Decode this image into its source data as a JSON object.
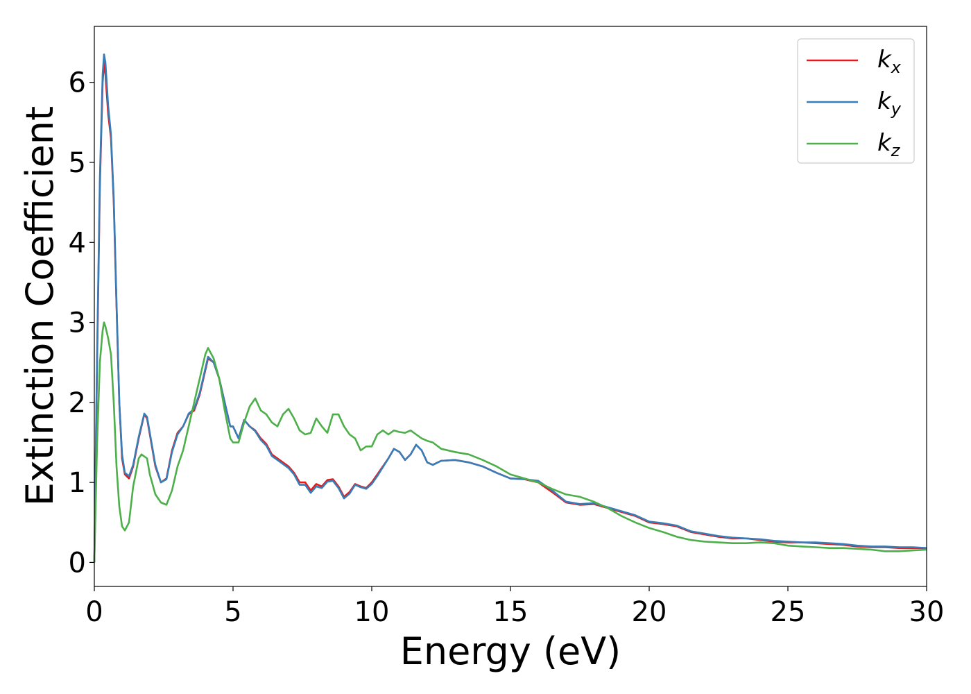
{
  "chart_data": {
    "type": "line",
    "title": "",
    "xlabel": "Energy (eV)",
    "ylabel": "Extinction Coefficient",
    "xlim": [
      0,
      30
    ],
    "ylim": [
      -0.3,
      6.7
    ],
    "xticks": [
      "0",
      "5",
      "10",
      "15",
      "20",
      "25",
      "30"
    ],
    "yticks": [
      "0",
      "1",
      "2",
      "3",
      "4",
      "5",
      "6"
    ],
    "grid": false,
    "legend_position": "top-right",
    "series": [
      {
        "name": "k_x",
        "symbol": "k",
        "subscript": "x",
        "color": "#e41a1c",
        "x": [
          0,
          0.1,
          0.2,
          0.3,
          0.35,
          0.4,
          0.5,
          0.6,
          0.7,
          0.8,
          0.9,
          1.0,
          1.1,
          1.25,
          1.4,
          1.6,
          1.8,
          1.9,
          2.0,
          2.2,
          2.4,
          2.6,
          2.8,
          3.0,
          3.2,
          3.4,
          3.6,
          3.8,
          4.0,
          4.1,
          4.3,
          4.5,
          4.7,
          4.9,
          5.0,
          5.2,
          5.4,
          5.6,
          5.8,
          6.0,
          6.2,
          6.4,
          6.6,
          6.8,
          7.0,
          7.2,
          7.4,
          7.6,
          7.8,
          8.0,
          8.2,
          8.4,
          8.6,
          8.8,
          9.0,
          9.2,
          9.4,
          9.6,
          9.8,
          10.0,
          10.2,
          10.4,
          10.6,
          10.8,
          11.0,
          11.2,
          11.4,
          11.6,
          11.8,
          12.0,
          12.2,
          12.5,
          13.0,
          13.5,
          14.0,
          14.5,
          15.0,
          15.5,
          16.0,
          16.5,
          17.0,
          17.5,
          18.0,
          18.5,
          19.0,
          19.5,
          20.0,
          20.5,
          21.0,
          21.5,
          22.0,
          22.5,
          23.0,
          23.5,
          24.0,
          24.5,
          25.0,
          25.5,
          26.0,
          26.5,
          27.0,
          27.5,
          28.0,
          28.5,
          29.0,
          29.5,
          30.0
        ],
        "y": [
          0,
          2.5,
          4.7,
          6.0,
          6.25,
          6.1,
          5.6,
          5.3,
          4.5,
          3.2,
          2.0,
          1.3,
          1.1,
          1.05,
          1.2,
          1.55,
          1.85,
          1.8,
          1.6,
          1.2,
          1.0,
          1.05,
          1.4,
          1.62,
          1.7,
          1.85,
          1.9,
          2.1,
          2.4,
          2.55,
          2.5,
          2.3,
          2.0,
          1.7,
          1.7,
          1.55,
          1.78,
          1.7,
          1.65,
          1.55,
          1.48,
          1.35,
          1.3,
          1.25,
          1.2,
          1.12,
          1.0,
          1.0,
          0.9,
          0.98,
          0.95,
          1.03,
          1.04,
          0.95,
          0.82,
          0.88,
          0.98,
          0.95,
          0.93,
          1.0,
          1.1,
          1.2,
          1.3,
          1.42,
          1.38,
          1.28,
          1.35,
          1.47,
          1.4,
          1.25,
          1.22,
          1.27,
          1.28,
          1.25,
          1.2,
          1.12,
          1.05,
          1.04,
          1.0,
          0.88,
          0.75,
          0.72,
          0.73,
          0.68,
          0.63,
          0.58,
          0.5,
          0.48,
          0.45,
          0.38,
          0.35,
          0.32,
          0.3,
          0.3,
          0.28,
          0.26,
          0.25,
          0.25,
          0.24,
          0.23,
          0.22,
          0.2,
          0.19,
          0.19,
          0.18,
          0.18,
          0.18
        ]
      },
      {
        "name": "k_y",
        "symbol": "k",
        "subscript": "y",
        "color": "#377eb8",
        "x": [
          0,
          0.1,
          0.2,
          0.3,
          0.35,
          0.4,
          0.5,
          0.6,
          0.7,
          0.8,
          0.9,
          1.0,
          1.1,
          1.25,
          1.4,
          1.6,
          1.8,
          1.9,
          2.0,
          2.2,
          2.4,
          2.6,
          2.8,
          3.0,
          3.2,
          3.4,
          3.6,
          3.8,
          4.0,
          4.1,
          4.3,
          4.5,
          4.7,
          4.9,
          5.0,
          5.2,
          5.4,
          5.6,
          5.8,
          6.0,
          6.2,
          6.4,
          6.6,
          6.8,
          7.0,
          7.2,
          7.4,
          7.6,
          7.8,
          8.0,
          8.2,
          8.4,
          8.6,
          8.8,
          9.0,
          9.2,
          9.4,
          9.6,
          9.8,
          10.0,
          10.2,
          10.4,
          10.6,
          10.8,
          11.0,
          11.2,
          11.4,
          11.6,
          11.8,
          12.0,
          12.2,
          12.5,
          13.0,
          13.5,
          14.0,
          14.5,
          15.0,
          15.5,
          16.0,
          16.5,
          17.0,
          17.5,
          18.0,
          18.5,
          19.0,
          19.5,
          20.0,
          20.5,
          21.0,
          21.5,
          22.0,
          22.5,
          23.0,
          23.5,
          24.0,
          24.5,
          25.0,
          25.5,
          26.0,
          26.5,
          27.0,
          27.5,
          28.0,
          28.5,
          29.0,
          29.5,
          30.0
        ],
        "y": [
          0,
          2.6,
          4.8,
          6.1,
          6.35,
          6.25,
          5.7,
          5.35,
          4.55,
          3.25,
          2.0,
          1.35,
          1.12,
          1.08,
          1.22,
          1.57,
          1.86,
          1.82,
          1.62,
          1.22,
          1.0,
          1.04,
          1.38,
          1.6,
          1.7,
          1.86,
          1.92,
          2.12,
          2.42,
          2.57,
          2.5,
          2.3,
          2.0,
          1.7,
          1.7,
          1.55,
          1.78,
          1.7,
          1.64,
          1.53,
          1.46,
          1.33,
          1.28,
          1.23,
          1.18,
          1.1,
          0.97,
          0.97,
          0.87,
          0.95,
          0.93,
          1.01,
          1.02,
          0.93,
          0.8,
          0.86,
          0.97,
          0.94,
          0.92,
          0.98,
          1.08,
          1.19,
          1.3,
          1.42,
          1.38,
          1.28,
          1.35,
          1.47,
          1.4,
          1.25,
          1.22,
          1.27,
          1.28,
          1.25,
          1.2,
          1.12,
          1.05,
          1.04,
          1.02,
          0.9,
          0.76,
          0.73,
          0.74,
          0.69,
          0.64,
          0.59,
          0.51,
          0.49,
          0.46,
          0.39,
          0.36,
          0.33,
          0.31,
          0.3,
          0.29,
          0.27,
          0.26,
          0.25,
          0.25,
          0.24,
          0.23,
          0.21,
          0.2,
          0.2,
          0.19,
          0.19,
          0.18
        ]
      },
      {
        "name": "k_z",
        "symbol": "k",
        "subscript": "z",
        "color": "#4daf4a",
        "x": [
          0,
          0.1,
          0.2,
          0.3,
          0.35,
          0.4,
          0.5,
          0.6,
          0.7,
          0.8,
          0.9,
          1.0,
          1.1,
          1.25,
          1.4,
          1.6,
          1.7,
          1.9,
          2.0,
          2.2,
          2.4,
          2.6,
          2.8,
          3.0,
          3.2,
          3.4,
          3.6,
          3.8,
          4.0,
          4.1,
          4.3,
          4.5,
          4.7,
          4.9,
          5.0,
          5.2,
          5.4,
          5.6,
          5.8,
          6.0,
          6.2,
          6.4,
          6.6,
          6.8,
          7.0,
          7.2,
          7.4,
          7.6,
          7.8,
          8.0,
          8.2,
          8.4,
          8.6,
          8.8,
          9.0,
          9.2,
          9.4,
          9.6,
          9.8,
          10.0,
          10.2,
          10.4,
          10.6,
          10.8,
          11.0,
          11.2,
          11.4,
          11.6,
          11.8,
          12.0,
          12.2,
          12.5,
          13.0,
          13.5,
          14.0,
          14.5,
          15.0,
          15.5,
          16.0,
          16.5,
          17.0,
          17.5,
          18.0,
          18.5,
          19.0,
          19.5,
          20.0,
          20.5,
          21.0,
          21.5,
          22.0,
          22.5,
          23.0,
          23.5,
          24.0,
          24.5,
          25.0,
          25.5,
          26.0,
          26.5,
          27.0,
          27.5,
          28.0,
          28.5,
          29.0,
          29.5,
          30.0
        ],
        "y": [
          0,
          1.5,
          2.5,
          2.9,
          3.0,
          2.95,
          2.8,
          2.6,
          2.0,
          1.2,
          0.7,
          0.45,
          0.4,
          0.5,
          0.95,
          1.3,
          1.35,
          1.3,
          1.1,
          0.85,
          0.75,
          0.72,
          0.9,
          1.2,
          1.4,
          1.7,
          2.0,
          2.3,
          2.6,
          2.68,
          2.55,
          2.3,
          1.9,
          1.55,
          1.5,
          1.5,
          1.75,
          1.95,
          2.05,
          1.9,
          1.85,
          1.75,
          1.7,
          1.85,
          1.92,
          1.8,
          1.65,
          1.6,
          1.62,
          1.8,
          1.7,
          1.62,
          1.85,
          1.85,
          1.7,
          1.6,
          1.55,
          1.4,
          1.45,
          1.45,
          1.6,
          1.65,
          1.6,
          1.65,
          1.63,
          1.62,
          1.65,
          1.6,
          1.55,
          1.52,
          1.5,
          1.42,
          1.38,
          1.35,
          1.28,
          1.2,
          1.1,
          1.05,
          1.0,
          0.92,
          0.85,
          0.82,
          0.76,
          0.68,
          0.58,
          0.5,
          0.43,
          0.38,
          0.32,
          0.28,
          0.26,
          0.25,
          0.24,
          0.24,
          0.25,
          0.24,
          0.21,
          0.2,
          0.19,
          0.18,
          0.18,
          0.17,
          0.16,
          0.14,
          0.14,
          0.15,
          0.16
        ]
      }
    ]
  }
}
